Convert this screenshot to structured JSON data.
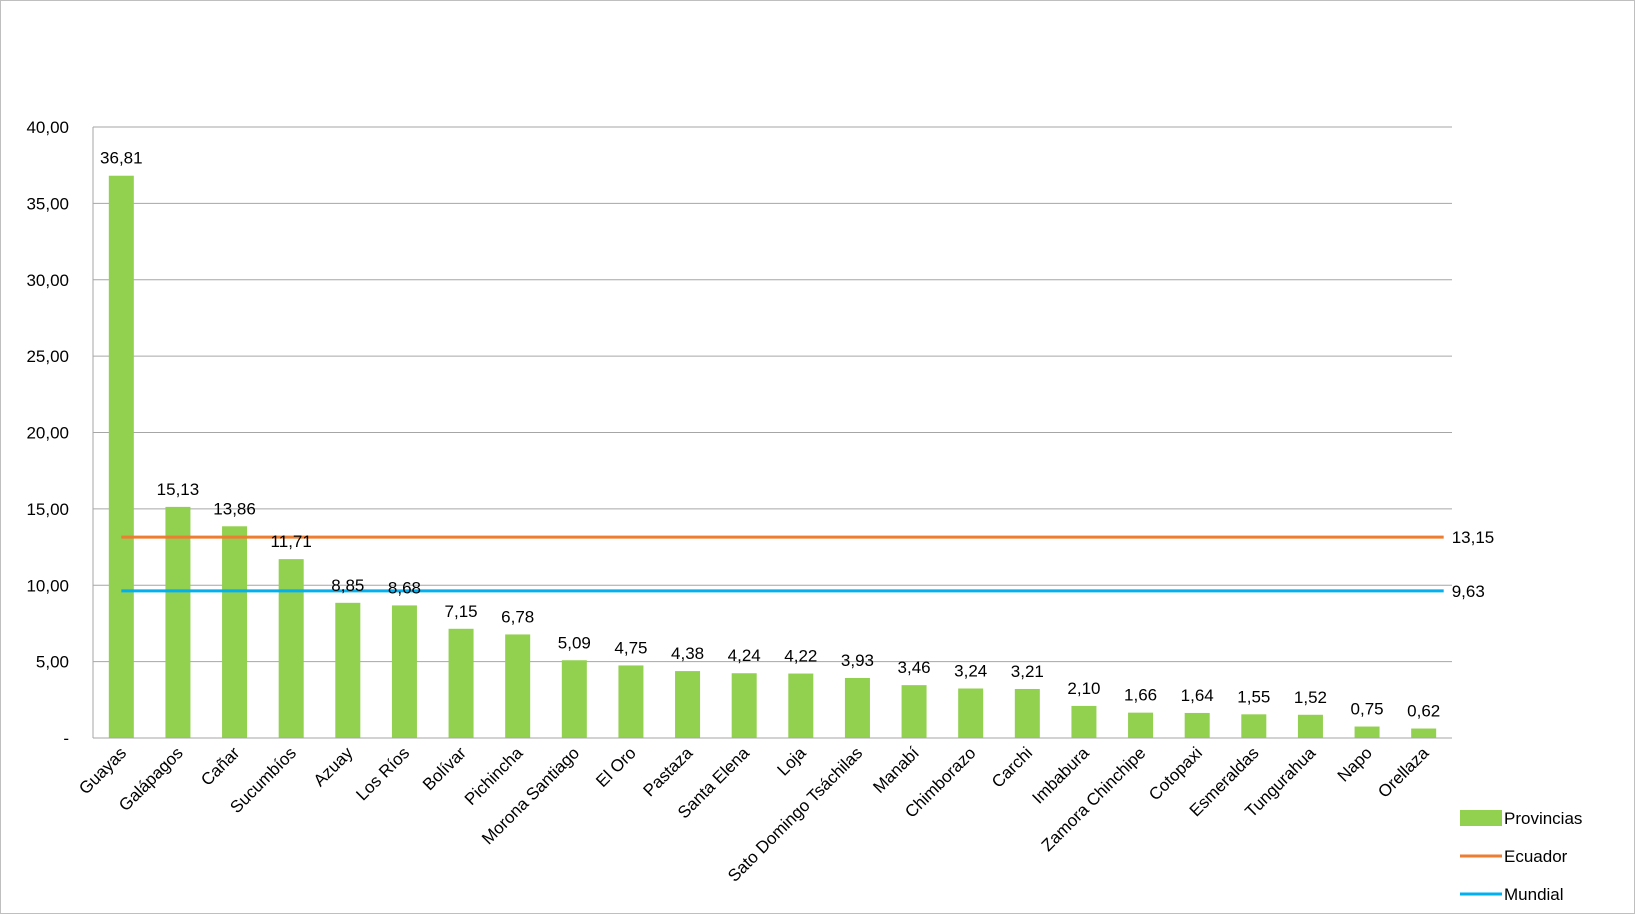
{
  "chart_data": {
    "type": "bar",
    "categories": [
      "Guayas",
      "Galápagos",
      "Cañar",
      "Sucumbíos",
      "Azuay",
      "Los Ríos",
      "Bolívar",
      "Pichincha",
      "Morona Santiago",
      "El Oro",
      "Pastaza",
      "Santa Elena",
      "Loja",
      "Sato Domingo Tsáchilas",
      "Manabí",
      "Chimborazo",
      "Carchi",
      "Imbabura",
      "Zamora Chinchipe",
      "Cotopaxi",
      "Esmeraldas",
      "Tungurahua",
      "Napo",
      "Orellaza"
    ],
    "series": [
      {
        "name": "Provincias",
        "type": "bar",
        "color": "#92d050",
        "values": [
          36.81,
          15.13,
          13.86,
          11.71,
          8.85,
          8.68,
          7.15,
          6.78,
          5.09,
          4.75,
          4.38,
          4.24,
          4.22,
          3.93,
          3.46,
          3.24,
          3.21,
          2.1,
          1.66,
          1.64,
          1.55,
          1.52,
          0.75,
          0.62
        ],
        "labels": [
          "36,81",
          "15,13",
          "13,86",
          "11,71",
          "8,85",
          "8,68",
          "7,15",
          "6,78",
          "5,09",
          "4,75",
          "4,38",
          "4,24",
          "4,22",
          "3,93",
          "3,46",
          "3,24",
          "3,21",
          "2,10",
          "1,66",
          "1,64",
          "1,55",
          "1,52",
          "0,75",
          "0,62"
        ]
      },
      {
        "name": "Ecuador",
        "type": "line",
        "color": "#ed7d31",
        "value": 13.15,
        "label": "13,15"
      },
      {
        "name": "Mundial",
        "type": "line",
        "color": "#00b0f0",
        "value": 9.63,
        "label": "9,63"
      }
    ],
    "ylim": [
      0,
      40
    ],
    "yticks": [
      0,
      5,
      10,
      15,
      20,
      25,
      30,
      35,
      40
    ],
    "ytick_labels": [
      "-",
      "5,00",
      "10,00",
      "15,00",
      "20,00",
      "25,00",
      "30,00",
      "35,00",
      "40,00"
    ],
    "grid": true,
    "legend": "bottom-right",
    "gridline_color": "#a6a6a6"
  }
}
